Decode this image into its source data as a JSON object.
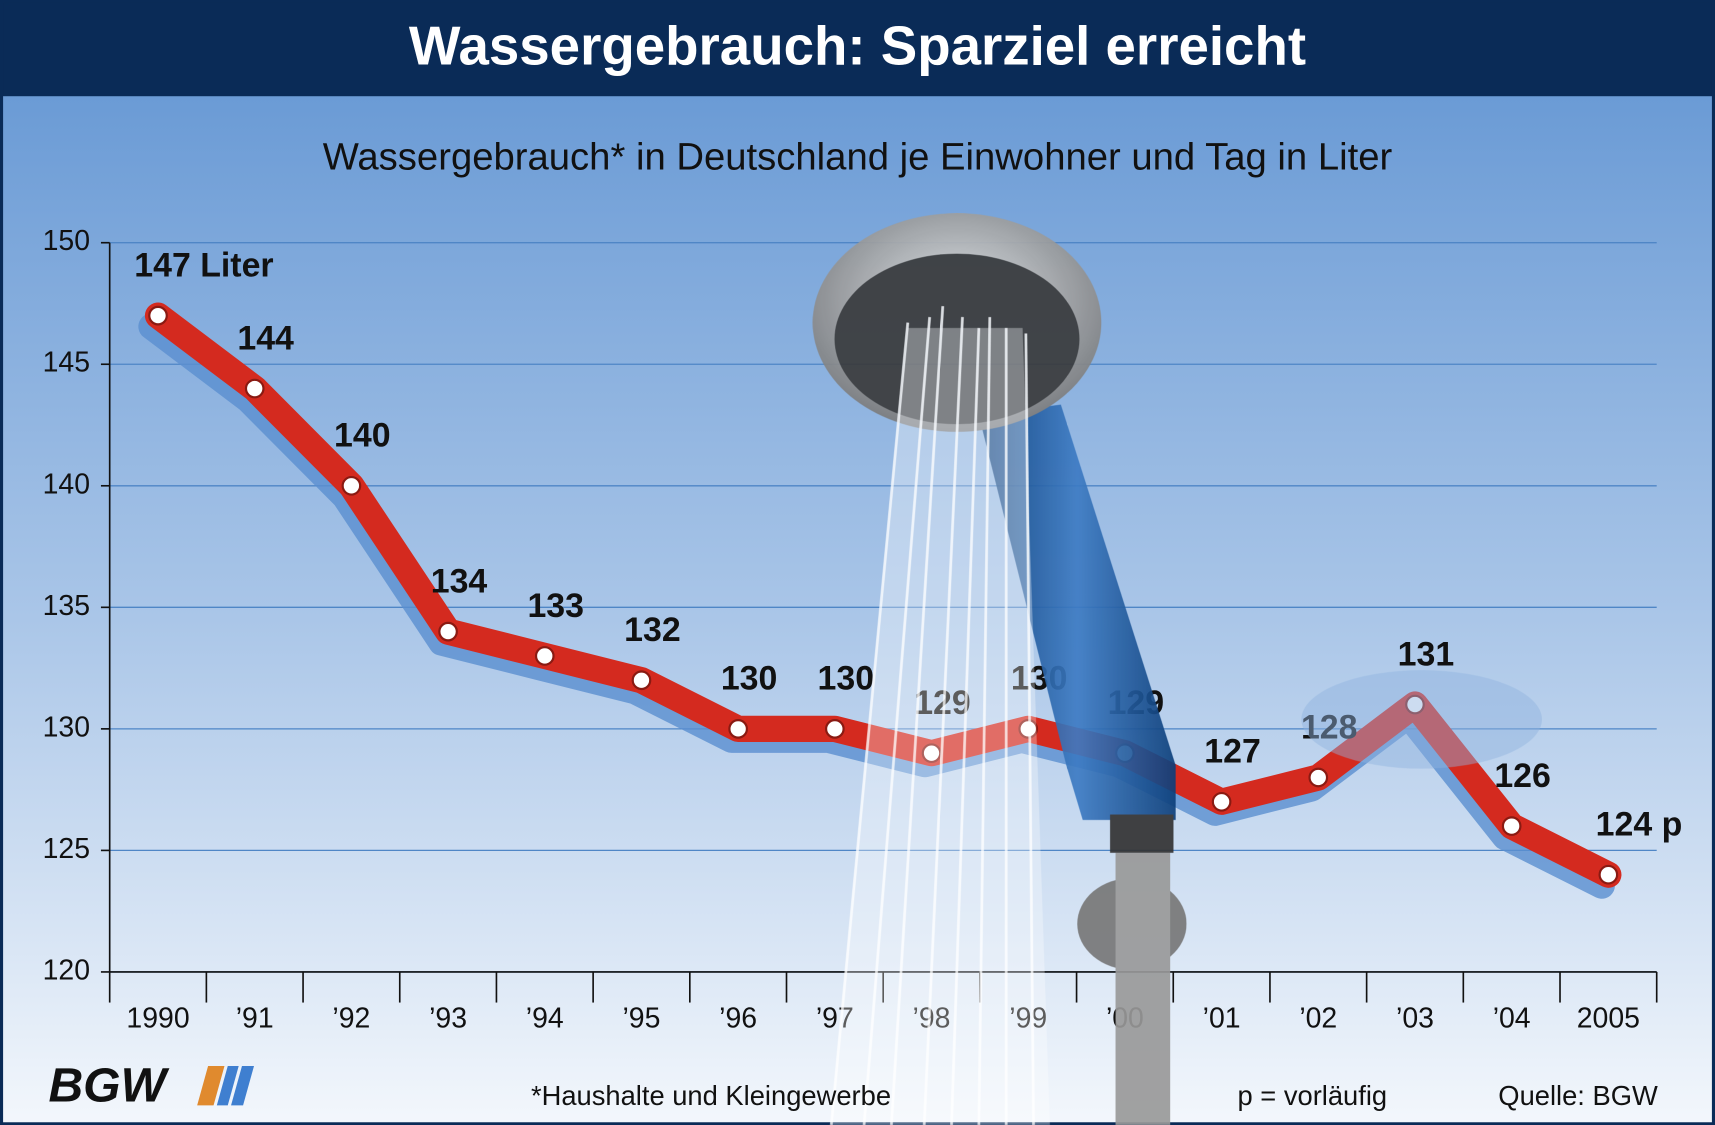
{
  "chart_data": {
    "type": "line",
    "title": "Wassergebrauch: Sparziel erreicht",
    "subtitle": "Wassergebrauch* in Deutschland je Einwohner und Tag in Liter",
    "categories": [
      "1990",
      "’91",
      "’92",
      "’93",
      "’94",
      "’95",
      "’96",
      "’97",
      "’98",
      "’99",
      "’00",
      "’01",
      "’02",
      "’03",
      "’04",
      "2005"
    ],
    "series": [
      {
        "name": "Wassergebrauch",
        "color": "#d42a1f",
        "values": [
          147,
          144,
          140,
          134,
          133,
          132,
          130,
          130,
          129,
          130,
          129,
          127,
          128,
          131,
          126,
          124
        ],
        "value_labels": [
          "147 Liter",
          "144",
          "140",
          "134",
          "133",
          "132",
          "130",
          "130",
          "129",
          "130",
          "129",
          "127",
          "128",
          "131",
          "126",
          "124 p"
        ]
      }
    ],
    "ylim": [
      120,
      150
    ],
    "yticks": [
      120,
      125,
      130,
      135,
      140,
      145,
      150
    ],
    "grid": true,
    "footnote": "*Haushalte und Kleingewerbe",
    "note": "p = vorläufig",
    "source": "Quelle: BGW",
    "logo": "BGW"
  }
}
